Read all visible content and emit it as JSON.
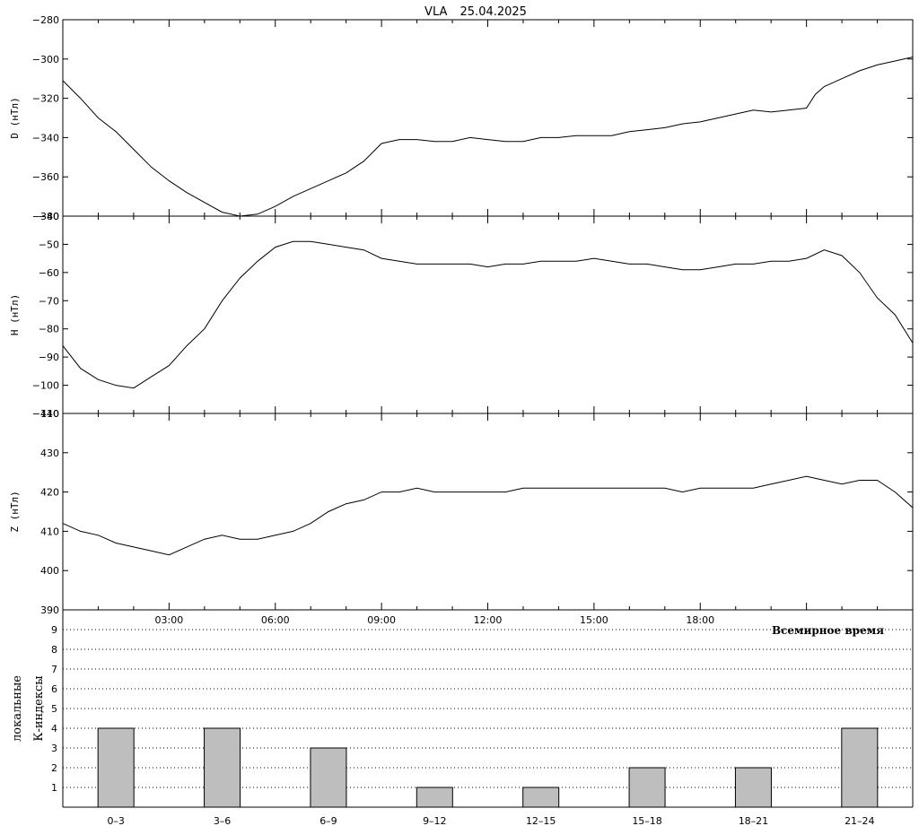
{
  "header": {
    "station": "VLA",
    "date": "25.04.2025"
  },
  "xaxis": {
    "label": "Всемирное время",
    "ticks": [
      {
        "h": 3,
        "label": "03:00"
      },
      {
        "h": 6,
        "label": "06:00"
      },
      {
        "h": 9,
        "label": "09:00"
      },
      {
        "h": 12,
        "label": "12:00"
      },
      {
        "h": 15,
        "label": "15:00"
      },
      {
        "h": 18,
        "label": "18:00"
      }
    ]
  },
  "chart_data": [
    {
      "type": "line",
      "id": "D",
      "ylabel": "D (нТл)",
      "ylim": [
        -380,
        -280
      ],
      "yticks": [
        -280,
        -300,
        -320,
        -340,
        -360,
        -380
      ],
      "xlim": [
        0,
        24
      ],
      "x_unit": "hours UT",
      "x": [
        0,
        0.5,
        1,
        1.5,
        2,
        2.5,
        3,
        3.5,
        4,
        4.5,
        5,
        5.5,
        6,
        6.5,
        7,
        7.5,
        8,
        8.5,
        9,
        9.5,
        10,
        10.5,
        11,
        11.5,
        12,
        12.5,
        13,
        13.5,
        14,
        14.5,
        15,
        15.5,
        16,
        16.5,
        17,
        17.5,
        18,
        18.5,
        19,
        19.5,
        20,
        20.5,
        21,
        21.25,
        21.5,
        22,
        22.5,
        23,
        23.5,
        24
      ],
      "y": [
        -311,
        -320,
        -330,
        -337,
        -346,
        -355,
        -362,
        -368,
        -373,
        -378,
        -380,
        -379,
        -375,
        -370,
        -366,
        -362,
        -358,
        -352,
        -343,
        -341,
        -341,
        -342,
        -342,
        -340,
        -341,
        -342,
        -342,
        -340,
        -340,
        -339,
        -339,
        -339,
        -337,
        -336,
        -335,
        -333,
        -332,
        -330,
        -328,
        -326,
        -327,
        -326,
        -325,
        -318,
        -314,
        -310,
        -306,
        -303,
        -301,
        -299
      ]
    },
    {
      "type": "line",
      "id": "H",
      "ylabel": "H (нТл)",
      "ylim": [
        -110,
        -40
      ],
      "yticks": [
        -40,
        -50,
        -60,
        -70,
        -80,
        -90,
        -100,
        -110
      ],
      "xlim": [
        0,
        24
      ],
      "x_unit": "hours UT",
      "x": [
        0,
        0.5,
        1,
        1.5,
        2,
        2.5,
        3,
        3.5,
        4,
        4.5,
        5,
        5.5,
        6,
        6.5,
        7,
        7.5,
        8,
        8.5,
        9,
        9.5,
        10,
        10.5,
        11,
        11.5,
        12,
        12.5,
        13,
        13.5,
        14,
        14.5,
        15,
        15.5,
        16,
        16.5,
        17,
        17.5,
        18,
        18.5,
        19,
        19.5,
        20,
        20.5,
        21,
        21.5,
        22,
        22.5,
        23,
        23.5,
        24
      ],
      "y": [
        -86,
        -94,
        -98,
        -100,
        -101,
        -97,
        -93,
        -86,
        -80,
        -70,
        -62,
        -56,
        -51,
        -49,
        -49,
        -50,
        -51,
        -52,
        -55,
        -56,
        -57,
        -57,
        -57,
        -57,
        -58,
        -57,
        -57,
        -56,
        -56,
        -56,
        -55,
        -56,
        -57,
        -57,
        -58,
        -59,
        -59,
        -58,
        -57,
        -57,
        -56,
        -56,
        -55,
        -52,
        -54,
        -60,
        -69,
        -75,
        -85
      ]
    },
    {
      "type": "line",
      "id": "Z",
      "ylabel": "Z (нТл)",
      "ylim": [
        390,
        440
      ],
      "yticks": [
        440,
        430,
        420,
        410,
        400,
        390
      ],
      "xlim": [
        0,
        24
      ],
      "x_unit": "hours UT",
      "x": [
        0,
        0.5,
        1,
        1.5,
        2,
        2.5,
        3,
        3.5,
        4,
        4.5,
        5,
        5.5,
        6,
        6.5,
        7,
        7.5,
        8,
        8.5,
        9,
        9.5,
        10,
        10.5,
        11,
        11.5,
        12,
        12.5,
        13,
        13.5,
        14,
        14.5,
        15,
        15.5,
        16,
        16.5,
        17,
        17.5,
        18,
        18.5,
        19,
        19.5,
        20,
        20.5,
        21,
        21.5,
        22,
        22.5,
        23,
        23.5,
        24
      ],
      "y": [
        412,
        410,
        409,
        407,
        406,
        405,
        404,
        406,
        408,
        409,
        408,
        408,
        409,
        410,
        412,
        415,
        417,
        418,
        420,
        420,
        421,
        420,
        420,
        420,
        420,
        420,
        421,
        421,
        421,
        421,
        421,
        421,
        421,
        421,
        421,
        420,
        421,
        421,
        421,
        421,
        422,
        423,
        424,
        423,
        422,
        423,
        423,
        420,
        416
      ]
    },
    {
      "type": "bar",
      "id": "K",
      "ylabel": [
        "локальные",
        "К-индексы"
      ],
      "ylim": [
        0,
        10
      ],
      "yticks": [
        1,
        2,
        3,
        4,
        5,
        6,
        7,
        8,
        9
      ],
      "grid": "horizontal dotted",
      "categories": [
        "0–3",
        "3–6",
        "6–9",
        "9–12",
        "12–15",
        "15–18",
        "18–21",
        "21–24"
      ],
      "values": [
        4,
        4,
        3,
        1,
        1,
        2,
        2,
        4
      ],
      "bar_color": "#bebebe"
    }
  ]
}
